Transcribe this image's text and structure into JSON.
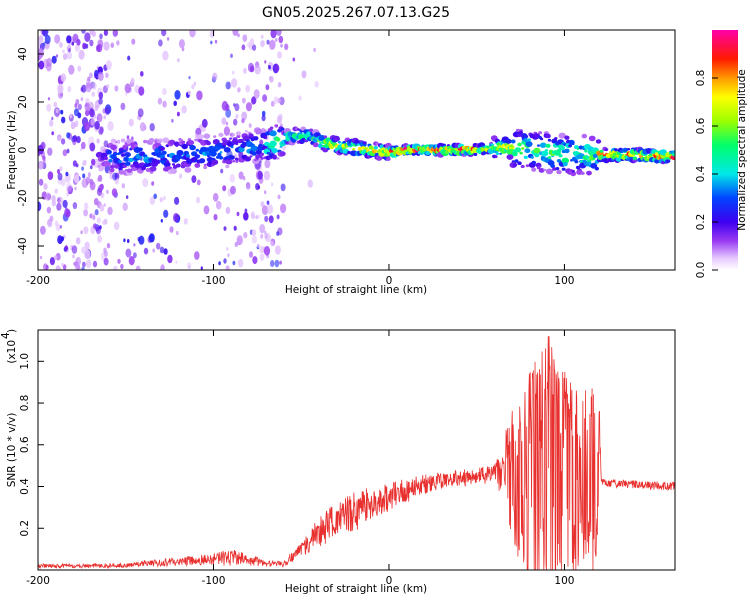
{
  "title": "GN05.2025.267.07.13.G25",
  "chart_data": [
    {
      "type": "heatmap",
      "xlabel": "Height of straight line (km)",
      "ylabel": "Frequency (Hz)",
      "xlim": [
        -200,
        163
      ],
      "ylim": [
        -50,
        50
      ],
      "xticks": [
        "-200",
        "-100",
        "0",
        "100"
      ],
      "yticks": [
        "40",
        "20",
        "0",
        "-20",
        "-40"
      ],
      "grid": false,
      "colorbar": {
        "label": "Normalized spectral amplitude",
        "range": [
          0.0,
          1.0
        ],
        "ticks": [
          "0.0",
          "0.2",
          "0.4",
          "0.6",
          "0.8"
        ]
      },
      "centerline_hz": [
        [
          -160,
          -3
        ],
        [
          -140,
          -3
        ],
        [
          -120,
          -2
        ],
        [
          -100,
          -1
        ],
        [
          -80,
          1
        ],
        [
          -65,
          3
        ],
        [
          -55,
          6
        ],
        [
          -45,
          6
        ],
        [
          -38,
          3
        ],
        [
          -30,
          2
        ],
        [
          -20,
          1
        ],
        [
          -10,
          0
        ],
        [
          0,
          -1
        ],
        [
          10,
          0
        ],
        [
          20,
          0
        ],
        [
          40,
          0
        ],
        [
          50,
          0
        ],
        [
          60,
          1
        ],
        [
          70,
          1
        ],
        [
          80,
          0
        ],
        [
          90,
          -1
        ],
        [
          100,
          -2
        ],
        [
          110,
          -2
        ],
        [
          120,
          -2
        ],
        [
          140,
          -2
        ],
        [
          163,
          -3
        ]
      ]
    },
    {
      "type": "line",
      "xlabel": "Height of straight line (km)",
      "ylabel": "SNR (10 * v/v)",
      "y_multiplier": "(x10",
      "y_multiplier_exp": "4",
      "xlim": [
        -200,
        163
      ],
      "ylim": [
        0.0,
        1.15
      ],
      "xticks": [
        "-200",
        "-100",
        "0",
        "100"
      ],
      "yticks": [
        "1.0",
        "0.8",
        "0.6",
        "0.4",
        "0.2"
      ],
      "grid": false,
      "series": [
        {
          "color": "#e8312f",
          "envelope_x": [
            -200,
            -180,
            -160,
            -140,
            -120,
            -100,
            -90,
            -80,
            -70,
            -60,
            -50,
            -40,
            -30,
            -20,
            -10,
            0,
            10,
            20,
            30,
            40,
            50,
            60,
            70,
            75,
            80,
            90,
            100,
            110,
            120,
            121,
            140,
            163
          ],
          "envelope_y": [
            0.02,
            0.02,
            0.02,
            0.03,
            0.04,
            0.05,
            0.06,
            0.05,
            0.03,
            0.03,
            0.1,
            0.18,
            0.24,
            0.28,
            0.32,
            0.35,
            0.38,
            0.41,
            0.43,
            0.44,
            0.45,
            0.46,
            0.46,
            0.46,
            0.45,
            0.44,
            0.44,
            0.44,
            0.44,
            0.42,
            0.41,
            0.4
          ],
          "noise_amplitude": [
            0.01,
            0.01,
            0.01,
            0.015,
            0.02,
            0.03,
            0.04,
            0.03,
            0.015,
            0.015,
            0.04,
            0.07,
            0.09,
            0.1,
            0.08,
            0.07,
            0.06,
            0.05,
            0.04,
            0.04,
            0.04,
            0.05,
            0.2,
            0.3,
            0.35,
            0.45,
            0.35,
            0.3,
            0.3,
            0.02,
            0.02,
            0.02
          ]
        }
      ]
    }
  ]
}
